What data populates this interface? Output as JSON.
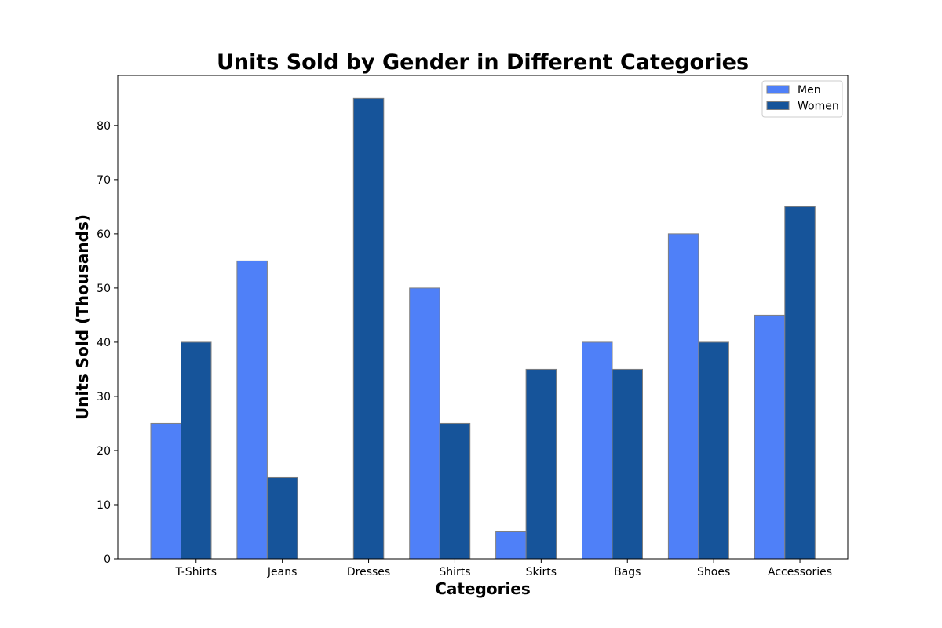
{
  "chart_data": {
    "type": "bar",
    "title": "Units Sold by Gender in Different Categories",
    "xlabel": "Categories",
    "ylabel": "Units Sold (Thousands)",
    "categories": [
      "T-Shirts",
      "Jeans",
      "Dresses",
      "Shirts",
      "Skirts",
      "Bags",
      "Shoes",
      "Accessories"
    ],
    "series": [
      {
        "name": "Men",
        "values": [
          25,
          55,
          0,
          50,
          5,
          40,
          60,
          45
        ],
        "color": "#4f80f8"
      },
      {
        "name": "Women",
        "values": [
          40,
          15,
          85,
          25,
          35,
          35,
          40,
          65
        ],
        "color": "#16549a"
      }
    ],
    "ylim": [
      0,
      89.25
    ],
    "yticks": [
      0,
      10,
      20,
      30,
      40,
      50,
      60,
      70,
      80
    ],
    "grid": false,
    "legend_position": "top-right",
    "bar_edge_color": "#808080"
  }
}
